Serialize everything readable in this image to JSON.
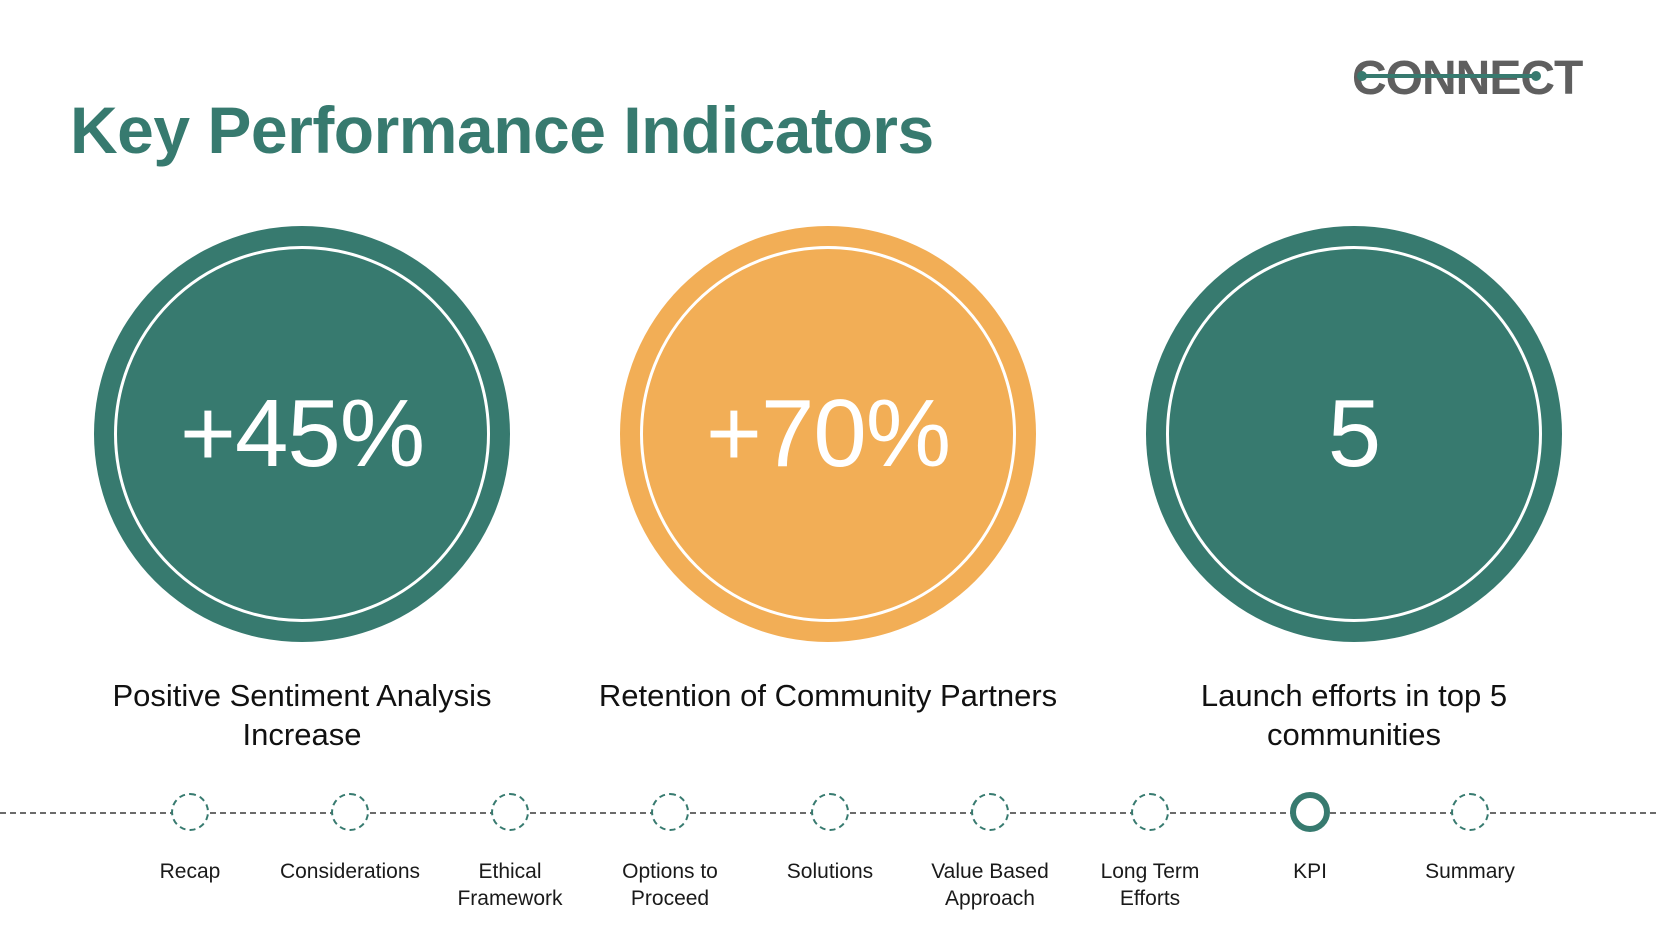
{
  "logo": {
    "text": "CONNECT",
    "accent_color": "#377a6f",
    "text_color": "#5f5f5f"
  },
  "title": "Key Performance Indicators",
  "colors": {
    "teal": "#377a6f",
    "orange": "#f2ae56"
  },
  "kpis": [
    {
      "value": "+45%",
      "caption": "Positive Sentiment Analysis Increase",
      "color": "teal"
    },
    {
      "value": "+70%",
      "caption": "Retention of Community Partners",
      "color": "orange"
    },
    {
      "value": "5",
      "caption": "Launch efforts in top 5 communities",
      "color": "teal"
    }
  ],
  "timeline": {
    "active_index": 7,
    "steps": [
      {
        "label": "Recap"
      },
      {
        "label": "Considerations"
      },
      {
        "label": "Ethical\nFramework"
      },
      {
        "label": "Options to\nProceed"
      },
      {
        "label": "Solutions"
      },
      {
        "label": "Value Based\nApproach"
      },
      {
        "label": "Long Term\nEfforts"
      },
      {
        "label": "KPI"
      },
      {
        "label": "Summary"
      }
    ]
  }
}
